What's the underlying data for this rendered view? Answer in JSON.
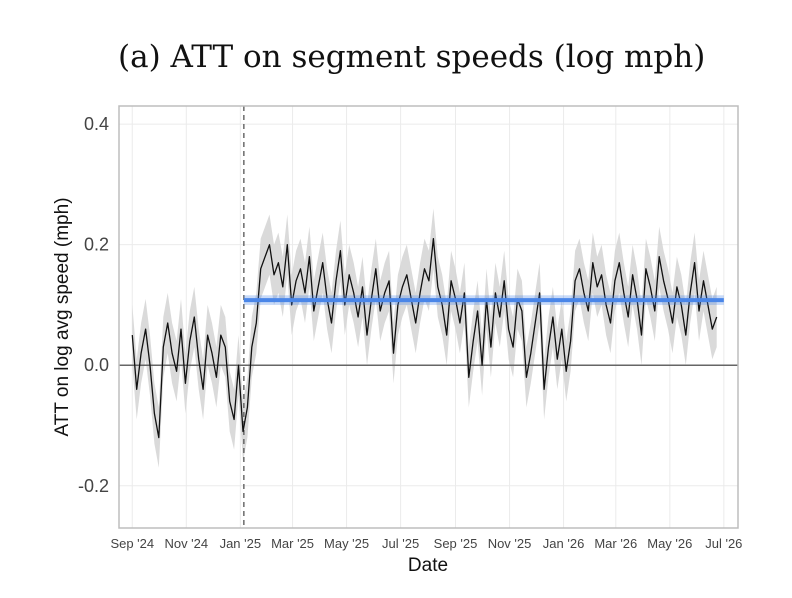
{
  "chart_data": {
    "type": "line",
    "title": "(a) ATT on segment speeds (log mph)",
    "xlabel": "Date",
    "ylabel": "ATT on log avg speed (mph)",
    "xlim": [
      "2024-08-17",
      "2026-07-17"
    ],
    "ylim": [
      -0.27,
      0.43
    ],
    "y_ticks": [
      0.4,
      0.2,
      0.0,
      -0.2
    ],
    "y_tick_labels": [
      "0.4",
      "0.2",
      "0.0",
      "-0.2"
    ],
    "x_ticks": [
      "2024-09-01",
      "2024-11-01",
      "2025-01-01",
      "2025-03-01",
      "2025-05-01",
      "2025-07-01",
      "2025-09-01",
      "2025-11-01",
      "2026-01-01",
      "2026-03-01",
      "2026-05-01",
      "2026-07-01"
    ],
    "x_tick_labels": [
      "Sep '24",
      "Nov '24",
      "Jan '25",
      "Mar '25",
      "May '25",
      "Jul '25",
      "Sep '25",
      "Nov '25",
      "Jan '26",
      "Mar '26",
      "May '26",
      "Jul '26"
    ],
    "treatment_date": "2025-01-05",
    "reference_y": 0.0,
    "grid": true,
    "colors": {
      "daily_line": "#111111",
      "ci_band": "#d4d4d4",
      "pooled_line": "#4a86e8",
      "zero_line": "#666666",
      "treatment_line": "#555555",
      "grid": "#ebebeb",
      "panel_border": "#bdbdbd"
    },
    "series": [
      {
        "x_start": "2024-09-01",
        "x_step_days": 5,
        "values": [
          0.05,
          -0.04,
          0.02,
          0.06,
          0.0,
          -0.08,
          -0.12,
          0.03,
          0.07,
          0.02,
          -0.01,
          0.06,
          -0.03,
          0.04,
          0.08,
          0.01,
          -0.04,
          0.05,
          0.02,
          -0.02,
          0.05,
          0.03,
          -0.06,
          -0.09,
          0.0,
          -0.11,
          -0.07,
          0.03,
          0.07,
          0.16,
          0.18,
          0.2,
          0.15,
          0.17,
          0.13,
          0.2,
          0.1,
          0.14,
          0.16,
          0.12,
          0.18,
          0.09,
          0.13,
          0.17,
          0.11,
          0.07,
          0.14,
          0.19,
          0.1,
          0.15,
          0.12,
          0.08,
          0.13,
          0.05,
          0.11,
          0.16,
          0.09,
          0.12,
          0.14,
          0.02,
          0.1,
          0.13,
          0.15,
          0.11,
          0.07,
          0.12,
          0.16,
          0.14,
          0.21,
          0.13,
          0.1,
          0.05,
          0.14,
          0.11,
          0.07,
          0.12,
          -0.02,
          0.04,
          0.09,
          0.0,
          0.11,
          0.03,
          0.12,
          0.08,
          0.14,
          0.06,
          0.03,
          0.11,
          0.09,
          -0.02,
          0.02,
          0.07,
          0.12,
          -0.04,
          0.03,
          0.08,
          0.01,
          0.06,
          -0.01,
          0.04,
          0.14,
          0.16,
          0.12,
          0.09,
          0.17,
          0.13,
          0.15,
          0.1,
          0.07,
          0.14,
          0.17,
          0.12,
          0.08,
          0.15,
          0.11,
          0.05,
          0.16,
          0.13,
          0.09,
          0.18,
          0.14,
          0.11,
          0.07,
          0.13,
          0.1,
          0.05,
          0.12,
          0.17,
          0.09,
          0.14,
          0.1,
          0.06,
          0.08
        ],
        "ci_half_width": 0.05
      },
      {
        "x": [
          "2025-01-05",
          "2026-07-01"
        ],
        "values": [
          0.108,
          0.108
        ],
        "ci": [
          0.1,
          0.116
        ]
      }
    ]
  }
}
